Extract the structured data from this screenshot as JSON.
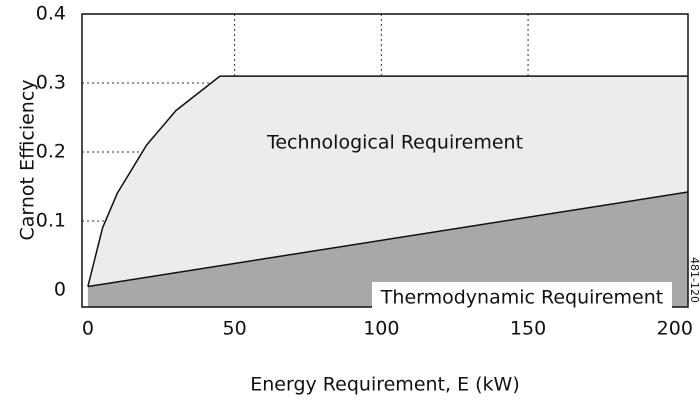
{
  "chart_data": {
    "type": "area",
    "x_label": "Energy Requirement, E (kW)",
    "y_label": "Carnot Efficiency",
    "xlim": [
      -2,
      204.5
    ],
    "ylim": [
      0,
      0.4
    ],
    "xticks": [
      0,
      50,
      100,
      150,
      200
    ],
    "yticks": [
      0,
      0.1,
      0.2,
      0.3,
      0.4
    ],
    "series": [
      {
        "name": "Technological Requirement",
        "color": "#ececec",
        "x": [
          0,
          5,
          10,
          20,
          30,
          45,
          204.5
        ],
        "values": [
          0.005,
          0.09,
          0.14,
          0.21,
          0.26,
          0.31,
          0.31
        ]
      },
      {
        "name": "Thermodynamic Requirement",
        "color": "#a8a8a8",
        "x": [
          0,
          204.5
        ],
        "values": [
          0.005,
          0.142
        ]
      }
    ],
    "annotations": [
      "481-120"
    ]
  }
}
